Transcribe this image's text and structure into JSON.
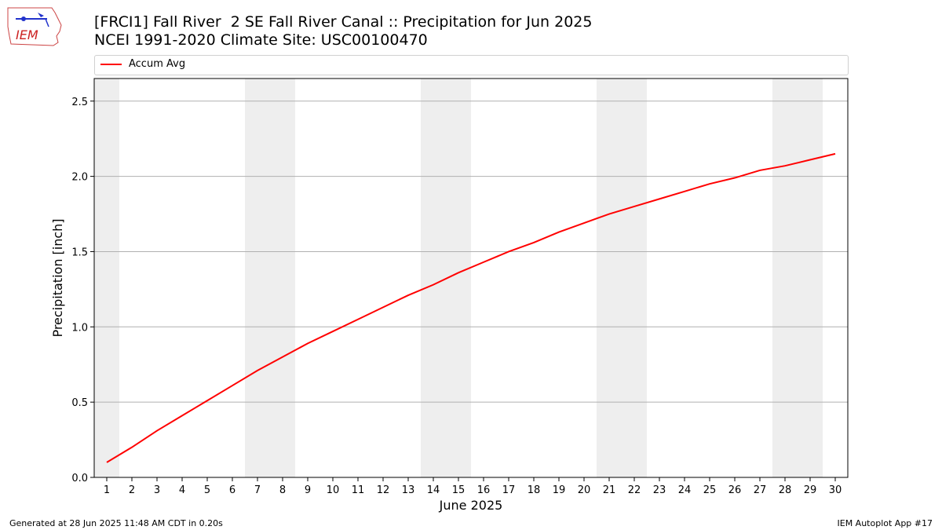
{
  "header": {
    "title_line1": "[FRCI1] Fall River  2 SE Fall River Canal :: Precipitation for Jun 2025",
    "title_line2": "NCEI 1991-2020 Climate Site: USC00100470"
  },
  "logo": {
    "text": "IEM",
    "icon": "iem-iowa-logo-icon"
  },
  "footer": {
    "left": "Generated at 28 Jun 2025 11:48 AM CDT in 0.20s",
    "right": "IEM Autoplot App #17"
  },
  "colors": {
    "series": "#ff0000",
    "weekend_band": "#eeeeee",
    "grid": "#b0b0b0"
  },
  "chart_data": {
    "type": "line",
    "xlabel": "June 2025",
    "ylabel": "Precipitation [inch]",
    "x": [
      1,
      2,
      3,
      4,
      5,
      6,
      7,
      8,
      9,
      10,
      11,
      12,
      13,
      14,
      15,
      16,
      17,
      18,
      19,
      20,
      21,
      22,
      23,
      24,
      25,
      26,
      27,
      28,
      29,
      30
    ],
    "xlim": [
      0.5,
      30.5
    ],
    "ylim": [
      0,
      2.65
    ],
    "yticks": [
      0.0,
      0.5,
      1.0,
      1.5,
      2.0,
      2.5
    ],
    "ytick_labels": [
      "0.0",
      "0.5",
      "1.0",
      "1.5",
      "2.0",
      "2.5"
    ],
    "grid": "y",
    "legend_position": "top",
    "weekend_days": [
      1,
      7,
      8,
      14,
      15,
      21,
      22,
      28,
      29
    ],
    "series": [
      {
        "name": "Accum Avg",
        "color": "#ff0000",
        "values": [
          0.1,
          0.2,
          0.31,
          0.41,
          0.51,
          0.61,
          0.71,
          0.8,
          0.89,
          0.97,
          1.05,
          1.13,
          1.21,
          1.28,
          1.36,
          1.43,
          1.5,
          1.56,
          1.63,
          1.69,
          1.75,
          1.8,
          1.85,
          1.9,
          1.95,
          1.99,
          2.04,
          2.07,
          2.11,
          2.15
        ]
      }
    ]
  }
}
